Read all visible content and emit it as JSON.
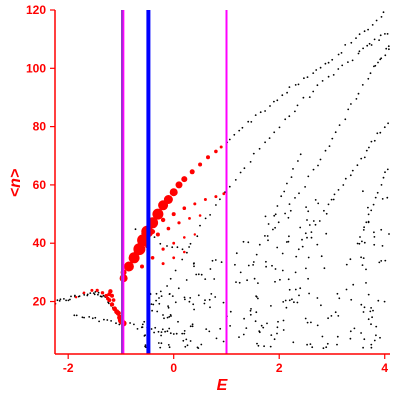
{
  "chart_data": {
    "type": "scatter",
    "title": "",
    "xlabel": "E",
    "ylabel": "<n>",
    "xlim": [
      -2.25,
      4.1
    ],
    "ylim": [
      2,
      120
    ],
    "x_ticks": [
      -2,
      0,
      2,
      4
    ],
    "y_ticks": [
      20,
      40,
      60,
      80,
      100,
      120
    ],
    "x_tick_labels": [
      "-2",
      "0",
      "2",
      "4"
    ],
    "y_tick_labels": [
      "20",
      "40",
      "60",
      "80",
      "100",
      "120"
    ],
    "grid": false,
    "legend": "none",
    "colors": {
      "axes": "#ff0000",
      "labels": "#ff0000",
      "black_points": "#000000",
      "red_points": "#ff0000",
      "magenta_lines": "#ff00ff",
      "purple_line": "#9933cc",
      "blue_line": "#0000ff"
    },
    "vertical_lines": [
      {
        "x": -0.98,
        "color": "#9933cc",
        "width": 2
      },
      {
        "x": -0.95,
        "color": "#ff00ff",
        "width": 1.5
      },
      {
        "x": -0.48,
        "color": "#0000ff",
        "width": 4
      },
      {
        "x": 1.0,
        "color": "#ff00ff",
        "width": 2
      }
    ],
    "black_lines": [
      {
        "points": [
          [
            -2.25,
            19.5
          ],
          [
            -1.9,
            21.5
          ],
          [
            -1.55,
            23
          ],
          [
            -1.3,
            22
          ],
          [
            -1.1,
            17
          ],
          [
            -0.95,
            12
          ]
        ],
        "n": 45
      },
      {
        "points": [
          [
            -1.9,
            15
          ],
          [
            -1.2,
            13
          ],
          [
            -0.4,
            10.5
          ],
          [
            0.2,
            8.5
          ]
        ],
        "n": 30
      },
      {
        "points": [
          [
            -0.5,
            14
          ],
          [
            0.5,
            45
          ],
          [
            1.5,
            70
          ],
          [
            2.5,
            90
          ],
          [
            3.5,
            105
          ],
          [
            4.1,
            113
          ]
        ],
        "n": 55
      },
      {
        "points": [
          [
            1.0,
            75
          ],
          [
            2.0,
            90
          ],
          [
            3.0,
            103
          ],
          [
            4.0,
            119
          ]
        ],
        "n": 38
      },
      {
        "points": [
          [
            1.8,
            43
          ],
          [
            2.6,
            63
          ],
          [
            3.2,
            82
          ],
          [
            3.8,
            100
          ],
          [
            4.1,
            108
          ]
        ],
        "n": 34
      },
      {
        "points": [
          [
            2.3,
            35
          ],
          [
            3.0,
            55
          ],
          [
            3.6,
            70
          ],
          [
            4.1,
            83
          ]
        ],
        "n": 28
      },
      {
        "points": [
          [
            3.5,
            40
          ],
          [
            3.8,
            55
          ],
          [
            4.1,
            68
          ]
        ],
        "n": 14
      },
      {
        "points": [
          [
            -0.7,
            45
          ],
          [
            -0.2,
            40
          ],
          [
            0.3,
            38
          ]
        ],
        "n": 10
      },
      {
        "points": [
          [
            1.5,
            32
          ],
          [
            2.0,
            55
          ],
          [
            2.4,
            70
          ]
        ],
        "n": 14
      }
    ],
    "black_cloud": {
      "n": 260,
      "x_range": [
        -0.6,
        4.1
      ],
      "y_range": [
        4,
        58
      ]
    },
    "red_series": [
      {
        "points": [
          [
            -0.95,
            28
          ],
          [
            -0.85,
            32
          ],
          [
            -0.75,
            35
          ],
          [
            -0.65,
            38
          ],
          [
            -0.58,
            41
          ],
          [
            -0.5,
            44
          ],
          [
            -0.4,
            47
          ],
          [
            -0.3,
            50
          ],
          [
            -0.2,
            53
          ],
          [
            -0.1,
            55
          ],
          [
            0.0,
            57.5
          ],
          [
            0.1,
            60
          ],
          [
            0.2,
            62
          ],
          [
            0.35,
            64.5
          ],
          [
            0.5,
            67
          ],
          [
            0.65,
            69.5
          ],
          [
            0.8,
            71.5
          ],
          [
            0.9,
            73
          ]
        ],
        "sizes": [
          4,
          5,
          5.5,
          6,
          6,
          6,
          5.5,
          5.5,
          5,
          4.5,
          4,
          3.5,
          3,
          2.5,
          2,
          2,
          1.8,
          1.5
        ]
      },
      {
        "points": [
          [
            -0.95,
            30
          ],
          [
            -0.7,
            37
          ],
          [
            -0.4,
            44
          ],
          [
            -0.2,
            48
          ],
          [
            0.0,
            50
          ],
          [
            0.2,
            52
          ],
          [
            0.4,
            53.5
          ],
          [
            0.6,
            55
          ],
          [
            0.8,
            56
          ],
          [
            0.95,
            57
          ]
        ],
        "sizes": [
          3,
          3,
          2.5,
          2.2,
          2,
          1.8,
          1.5,
          1.5,
          1.5,
          1.4
        ]
      },
      {
        "points": [
          [
            -0.7,
            35
          ],
          [
            -0.5,
            39
          ],
          [
            -0.3,
            43
          ],
          [
            -0.1,
            45
          ],
          [
            0.1,
            47
          ],
          [
            0.3,
            48.5
          ],
          [
            0.5,
            49.5
          ]
        ],
        "sizes": [
          2.5,
          2.2,
          2,
          1.8,
          1.6,
          1.4,
          1.3
        ]
      },
      {
        "points": [
          [
            -0.6,
            32
          ],
          [
            -0.4,
            35
          ],
          [
            -0.2,
            38
          ],
          [
            0.0,
            40
          ],
          [
            0.2,
            42
          ],
          [
            0.4,
            43
          ]
        ],
        "sizes": [
          2,
          1.8,
          1.6,
          1.4,
          1.3,
          1.2
        ]
      },
      {
        "points": [
          [
            -0.2,
            33
          ],
          [
            0.0,
            35
          ],
          [
            0.2,
            37
          ]
        ],
        "sizes": [
          1.5,
          1.4,
          1.3
        ]
      },
      {
        "points": [
          [
            -1.85,
            21.5
          ],
          [
            -1.7,
            23
          ],
          [
            -1.55,
            23.8
          ],
          [
            -1.45,
            23.8
          ],
          [
            -1.35,
            23
          ],
          [
            -1.28,
            22
          ],
          [
            -1.22,
            20.5
          ],
          [
            -1.17,
            19
          ],
          [
            -1.12,
            17.5
          ],
          [
            -1.08,
            16.5
          ],
          [
            -1.05,
            16
          ],
          [
            -1.02,
            14.5
          ],
          [
            -1.0,
            13.5
          ],
          [
            -0.98,
            13
          ],
          [
            -0.95,
            12.5
          ]
        ],
        "sizes": [
          1.2,
          1.3,
          1.5,
          1.6,
          1.7,
          1.8,
          2,
          2.2,
          2.4,
          2.5,
          2.6,
          2.8,
          3,
          3,
          3
        ]
      },
      {
        "points": [
          [
            -1.25,
            21
          ],
          [
            -1.22,
            22.5
          ],
          [
            -1.2,
            23.5
          ],
          [
            -1.17,
            22
          ],
          [
            -1.14,
            20.5
          ]
        ],
        "sizes": [
          1.8,
          2,
          2.2,
          2,
          1.8
        ]
      }
    ]
  }
}
